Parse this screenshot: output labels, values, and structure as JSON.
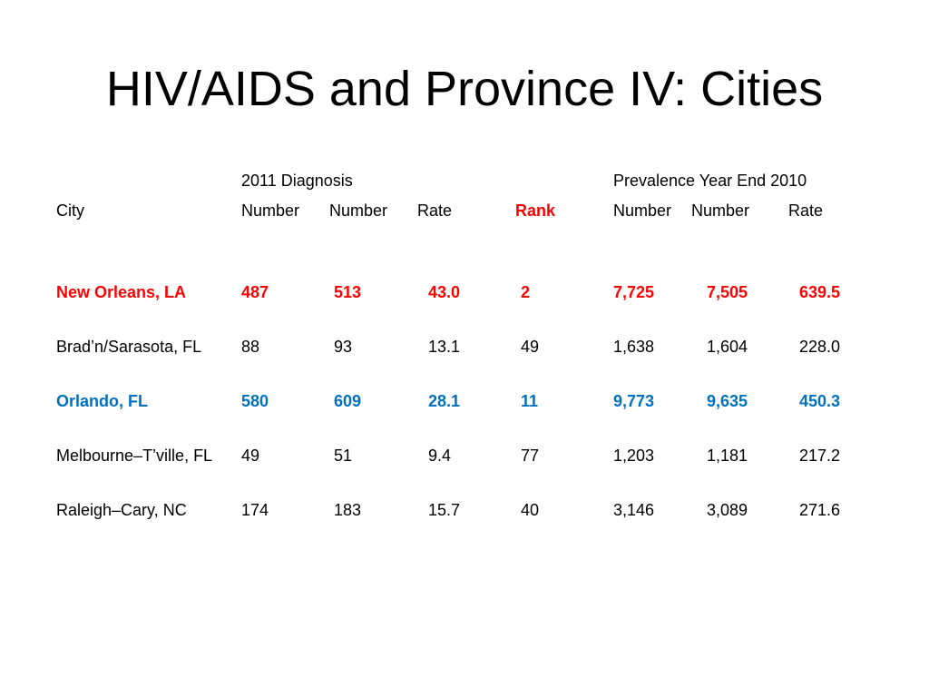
{
  "title": "HIV/AIDS and Province IV: Cities",
  "headers": {
    "group_diagnosis": "2011 Diagnosis",
    "group_prevalence": "Prevalence Year End 2010",
    "city": "City",
    "diag_number_1": "Number",
    "diag_number_2": "Number",
    "diag_rate": "Rate",
    "rank": "Rank",
    "prev_number_1": "Number",
    "prev_number_2": "Number",
    "prev_rate": "Rate"
  },
  "rows": [
    {
      "city": "New Orleans, LA",
      "n1": "487",
      "n2": "513",
      "rate": "43.0",
      "rank": "2",
      "p1": "7,725",
      "p2": "7,505",
      "prate": "639.5",
      "highlight": "red"
    },
    {
      "city": "Brad’n/Sarasota, FL",
      "n1": "88",
      "n2": "93",
      "rate": "13.1",
      "rank": "49",
      "p1": "1,638",
      "p2": "1,604",
      "prate": "228.0",
      "highlight": "none"
    },
    {
      "city": "Orlando, FL",
      "n1": "580",
      "n2": "609",
      "rate": "28.1",
      "rank": "11",
      "p1": "9,773",
      "p2": "9,635",
      "prate": "450.3",
      "highlight": "blue"
    },
    {
      "city": "Melbourne–T’ville, FL",
      "n1": "49",
      "n2": "51",
      "rate": "9.4",
      "rank": "77",
      "p1": "1,203",
      "p2": "1,181",
      "prate": "217.2",
      "highlight": "none"
    },
    {
      "city": "Raleigh–Cary, NC",
      "n1": "174",
      "n2": "183",
      "rate": "15.7",
      "rank": "40",
      "p1": "3,146",
      "p2": "3,089",
      "prate": "271.6",
      "highlight": "none"
    }
  ],
  "colors": {
    "highlight_red": "#ff0000",
    "highlight_blue": "#0070c0",
    "text": "#000000",
    "background": "#ffffff"
  }
}
